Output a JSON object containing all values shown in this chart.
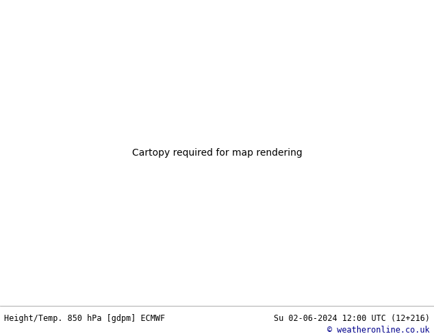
{
  "title_left": "Height/Temp. 850 hPa [gdpm] ECMWF",
  "title_right": "Su 02-06-2024 12:00 UTC (12+216)",
  "credit": "© weatheronline.co.uk",
  "footer_bg": "#ffffff",
  "footer_text_color": "#000000",
  "footer_credit_color": "#00008b",
  "ocean_color": "#c8d0d8",
  "land_green": "#c8f0a0",
  "land_gray": "#b8b8b8",
  "figsize": [
    6.34,
    4.9
  ],
  "dpi": 100,
  "footer_fontsize": 8.5,
  "map_extent": [
    -175,
    -50,
    10,
    80
  ],
  "label_fontsize": 7
}
